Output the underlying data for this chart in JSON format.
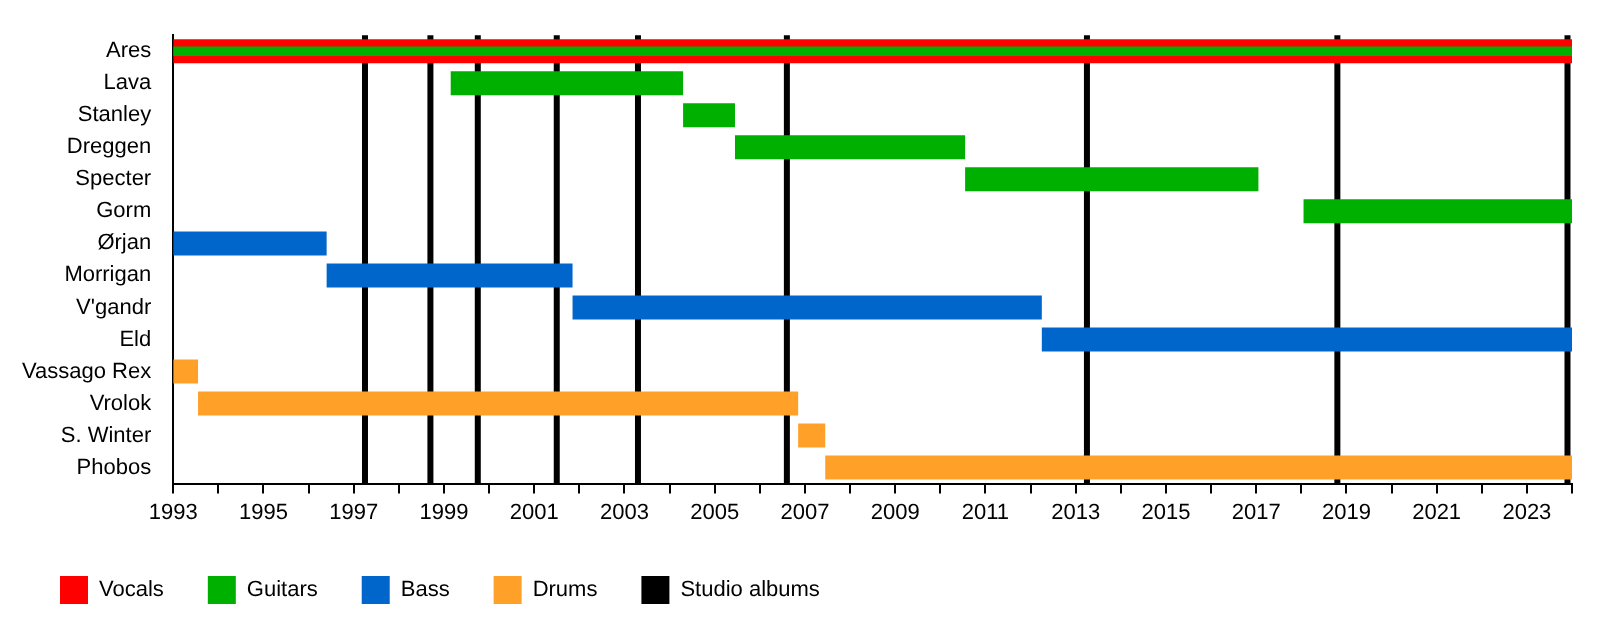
{
  "chart_data": {
    "type": "bar",
    "orientation": "horizontal",
    "stacked": false,
    "categories": [
      "Ares",
      "Lava",
      "Stanley",
      "Dreggen",
      "Specter",
      "Gorm",
      "Ørjan",
      "Morrigan",
      "V'gandr",
      "Eld",
      "Vassago Rex",
      "Vrolok",
      "S. Winter",
      "Phobos"
    ],
    "series": [
      {
        "name": "Vocals",
        "color": "#ff0000",
        "base": [
          1993,
          null,
          null,
          null,
          null,
          null,
          null,
          null,
          null,
          null,
          null,
          null,
          null,
          null
        ],
        "values": [
          31,
          null,
          null,
          null,
          null,
          null,
          null,
          null,
          null,
          null,
          null,
          null,
          null,
          null
        ]
      },
      {
        "name": "Guitars",
        "color": "#00b000",
        "base": [
          1993,
          1999.15,
          2004.3,
          2005.45,
          2010.55,
          2018.05,
          null,
          null,
          null,
          null,
          null,
          null,
          null,
          null
        ],
        "values": [
          31,
          5.15,
          1.15,
          5.1,
          6.5,
          5.95,
          null,
          null,
          null,
          null,
          null,
          null,
          null,
          null
        ]
      },
      {
        "name": "Bass",
        "color": "#0066cc",
        "base": [
          null,
          null,
          null,
          null,
          null,
          null,
          1993,
          1996.4,
          2001.85,
          2012.25,
          null,
          null,
          null,
          null
        ],
        "values": [
          null,
          null,
          null,
          null,
          null,
          null,
          3.4,
          5.45,
          10.4,
          11.75,
          null,
          null,
          null,
          null
        ]
      },
      {
        "name": "Drums",
        "color": "#ffa028",
        "base": [
          null,
          null,
          null,
          null,
          null,
          null,
          null,
          null,
          null,
          null,
          1993,
          1993.55,
          2006.85,
          2007.45
        ],
        "values": [
          null,
          null,
          null,
          null,
          null,
          null,
          null,
          null,
          null,
          null,
          0.55,
          13.3,
          0.6,
          16.55
        ]
      }
    ],
    "xlim": [
      1993,
      2024
    ],
    "xticks": [
      1993,
      {
        "value": 1994,
        "label": null
      },
      1995,
      {
        "value": 1996,
        "label": null
      },
      1997,
      {
        "value": 1998,
        "label": null
      },
      1999,
      {
        "value": 2000,
        "label": null
      },
      2001,
      {
        "value": 2002,
        "label": null
      },
      2003,
      {
        "value": 2004,
        "label": null
      },
      2005,
      {
        "value": 2006,
        "label": null
      },
      2007,
      {
        "value": 2008,
        "label": null
      },
      2009,
      {
        "value": 2010,
        "label": null
      },
      2011,
      {
        "value": 2012,
        "label": null
      },
      2013,
      {
        "value": 2014,
        "label": null
      },
      2015,
      {
        "value": 2016,
        "label": null
      },
      2017,
      {
        "value": 2018,
        "label": null
      },
      2019,
      {
        "value": 2020,
        "label": null
      },
      2021,
      {
        "value": 2022,
        "label": null
      },
      2023,
      {
        "value": 2024,
        "label": null
      }
    ],
    "ref_lines": [
      {
        "axis": "x",
        "value": 1997.25,
        "label": "Studio albums",
        "color": "#000000"
      },
      {
        "axis": "x",
        "value": 1998.7,
        "color": "#000000"
      },
      {
        "axis": "x",
        "value": 1999.75,
        "color": "#000000"
      },
      {
        "axis": "x",
        "value": 2001.5,
        "color": "#000000"
      },
      {
        "axis": "x",
        "value": 2003.3,
        "color": "#000000"
      },
      {
        "axis": "x",
        "value": 2006.6,
        "color": "#000000"
      },
      {
        "axis": "x",
        "value": 2013.25,
        "color": "#000000"
      },
      {
        "axis": "x",
        "value": 2018.8,
        "color": "#000000"
      },
      {
        "axis": "x",
        "value": 2023.9,
        "color": "#000000"
      }
    ],
    "grid": false,
    "legend": "bottom"
  }
}
